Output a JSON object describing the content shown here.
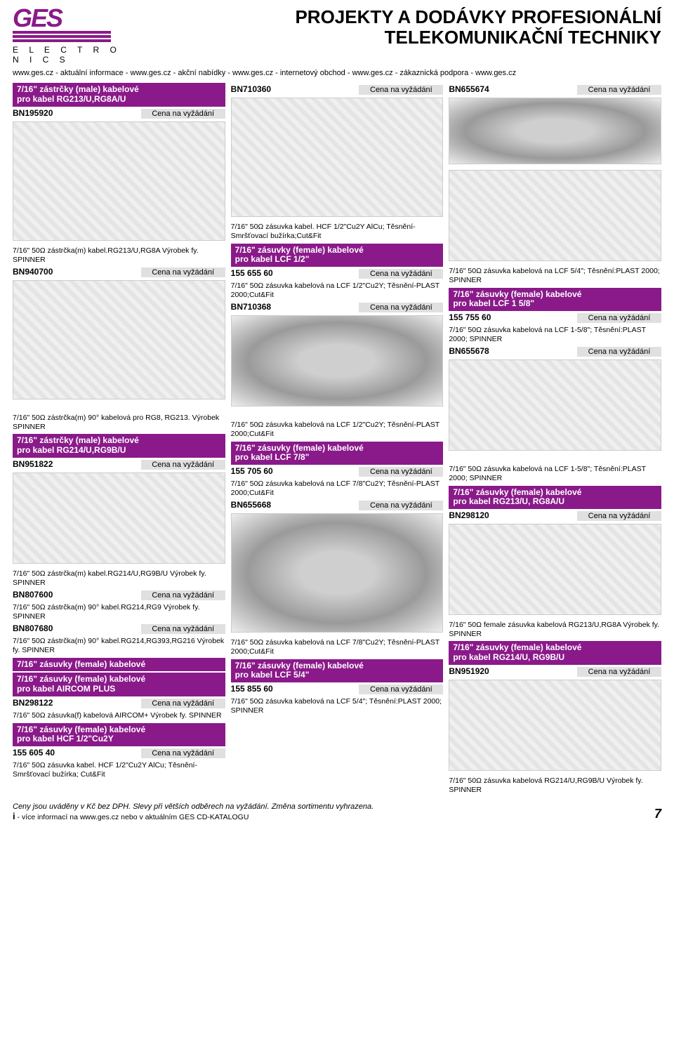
{
  "header": {
    "logo_text": "GES",
    "logo_sub": "E L E C T R O N I C S",
    "title_l1": "PROJEKTY A DODÁVKY PROFESIONÁLNÍ",
    "title_l2": "TELEKOMUNIKAČNÍ TECHNIKY",
    "subheader": "www.ges.cz - aktuální informace - www.ges.cz - akční nabídky - www.ges.cz - internetový obchod - www.ges.cz - zákaznická podpora - www.ges.cz"
  },
  "price_label": "Cena na vyžádání",
  "col1": {
    "band1_l1": "7/16\" zástrčky (male) kabelové",
    "band1_l2": "pro kabel RG213/U,RG8A/U",
    "pn1": "BN195920",
    "desc1": "7/16\" 50Ω zástrčka(m) kabel.RG213/U,RG8A\nVýrobek fy. SPINNER",
    "pn2": "BN940700",
    "desc2": "7/16\" 50Ω zástrčka(m) 90° kabelová pro RG8, RG213.\nVýrobek SPINNER",
    "band2_l1": "7/16\" zástrčky (male) kabelové",
    "band2_l2": "pro kabel RG214/U,RG9B/U",
    "pn3": "BN951822",
    "desc3": "7/16\" 50Ω zástrčka(m) kabel.RG214/U,RG9B/U\nVýrobek fy. SPINNER",
    "pn4": "BN807600",
    "desc4": "7/16\" 50Ω zástrčka(m) 90° kabel.RG214,RG9\nVýrobek fy. SPINNER",
    "pn5": "BN807680",
    "desc5": "7/16\" 50Ω zástrčka(m) 90° kabel.RG214,RG393,RG216\nVýrobek fy. SPINNER",
    "band3": "7/16\" zásuvky (female) kabelové",
    "band4_l1": "7/16\" zásuvky (female) kabelové",
    "band4_l2": "pro kabel AIRCOM PLUS",
    "pn6": "BN298122",
    "desc6": "7/16\" 50Ω zásuvka(f) kabelová AIRCOM+\nVýrobek fy. SPINNER",
    "band5_l1": "7/16\" zásuvky (female) kabelové",
    "band5_l2": "pro kabel HCF 1/2\"Cu2Y",
    "pn7": "155 605 40",
    "desc7": "7/16\" 50Ω zásuvka kabel. HCF 1/2\"Cu2Y AlCu;\nTěsnění-Smršťovací bužírka; Cut&Fit"
  },
  "col2": {
    "pn1": "BN710360",
    "desc1": "7/16\" 50Ω zásuvka kabel. HCF 1/2\"Cu2Y AlCu;\nTěsnění-Smršťovací bužírka;Cut&Fit",
    "band1_l1": "7/16\" zásuvky (female) kabelové",
    "band1_l2": "pro kabel LCF 1/2\"",
    "pn2": "155 655 60",
    "desc2": "7/16\" 50Ω zásuvka kabelová na LCF 1/2\"Cu2Y;\nTěsnění-PLAST 2000;Cut&Fit",
    "pn3": "BN710368",
    "desc3": "7/16\" 50Ω zásuvka kabelová na LCF 1/2\"Cu2Y;\nTěsnění-PLAST 2000;Cut&Fit",
    "band2_l1": "7/16\" zásuvky (female) kabelové",
    "band2_l2": "pro kabel LCF 7/8\"",
    "pn4": "155 705 60",
    "desc4": "7/16\" 50Ω zásuvka kabelová na LCF 7/8\"Cu2Y;\nTěsnění-PLAST 2000;Cut&Fit",
    "pn5": "BN655668",
    "desc5": "7/16\" 50Ω zásuvka kabelová na LCF 7/8\"Cu2Y;\nTěsnění-PLAST 2000;Cut&Fit",
    "band3_l1": "7/16\" zásuvky (female) kabelové",
    "band3_l2": "pro kabel LCF 5/4\"",
    "pn6": "155 855 60",
    "desc6": "7/16\" 50Ω zásuvka kabelová na LCF 5/4\";\nTěsnění:PLAST 2000; SPINNER"
  },
  "col3": {
    "pn1": "BN655674",
    "desc1": "7/16\" 50Ω zásuvka kabelová na LCF 5/4\";\nTěsnění:PLAST 2000; SPINNER",
    "band1_l1": "7/16\" zásuvky (female) kabelové",
    "band1_l2": "pro kabel LCF 1 5/8\"",
    "pn2": "155 755 60",
    "desc2": "7/16\" 50Ω zásuvka kabelová na LCF 1-5/8\";\nTěsnění:PLAST 2000; SPINNER",
    "pn3": "BN655678",
    "desc3": "7/16\" 50Ω zásuvka kabelová na LCF 1-5/8\";\nTěsnění:PLAST 2000; SPINNER",
    "band2_l1": "7/16\" zásuvky (female) kabelové",
    "band2_l2": "pro kabel RG213/U, RG8A/U",
    "pn4": "BN298120",
    "desc4": "7/16\" 50Ω female zásuvka kabelová RG213/U,RG8A\nVýrobek fy. SPINNER",
    "band3_l1": "7/16\" zásuvky (female) kabelové",
    "band3_l2": "pro kabel RG214/U, RG9B/U",
    "pn5": "BN951920",
    "desc5": "7/16\" 50Ω zásuvka kabelová RG214/U,RG9B/U\nVýrobek fy. SPINNER"
  },
  "footer": {
    "line1": "Ceny jsou uváděny v Kč bez DPH. Slevy při větších odběrech na vyžádání. Změna sortimentu vyhrazena.",
    "line2_prefix": "i",
    "line2": " - více informací na www.ges.cz nebo v aktuálním GES CD-KATALOGU",
    "page": "7"
  },
  "colors": {
    "brand": "#8a1a8a",
    "pricebg": "#e0e0e0",
    "text": "#000000",
    "bg": "#ffffff"
  }
}
